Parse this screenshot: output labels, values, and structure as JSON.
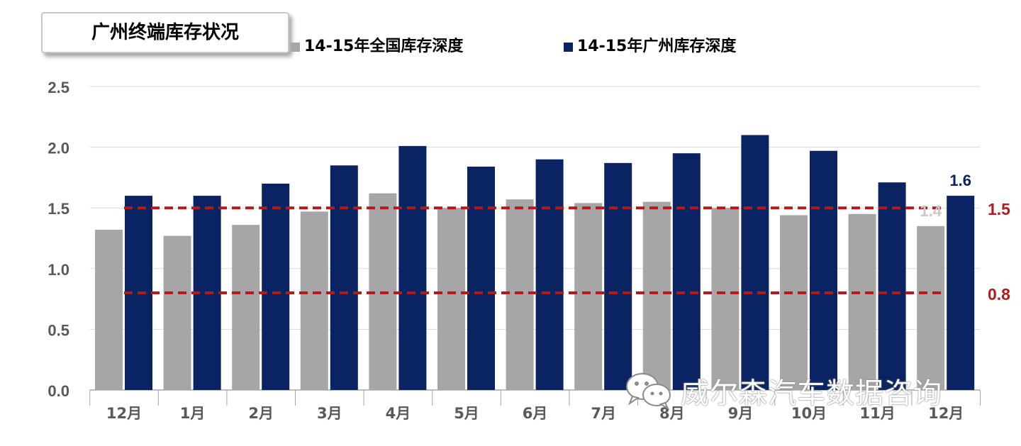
{
  "title": "广州终端库存状况",
  "legend": [
    {
      "label": "14-15年全国库存深度",
      "color": "#a6a6a6"
    },
    {
      "label": "14-15年广州库存深度",
      "color": "#0a2362"
    }
  ],
  "watermark": "威尔森汽车数据咨询",
  "chart_data": {
    "type": "bar",
    "categories": [
      "12月",
      "1月",
      "2月",
      "3月",
      "4月",
      "5月",
      "6月",
      "7月",
      "8月",
      "9月",
      "10月",
      "11月",
      "12月"
    ],
    "series": [
      {
        "name": "14-15年全国库存深度",
        "color": "#a6a6a6",
        "values": [
          1.32,
          1.27,
          1.36,
          1.47,
          1.62,
          1.5,
          1.57,
          1.54,
          1.55,
          1.5,
          1.44,
          1.45,
          1.35
        ]
      },
      {
        "name": "14-15年广州库存深度",
        "color": "#0a2362",
        "values": [
          1.6,
          1.6,
          1.7,
          1.85,
          2.01,
          1.84,
          1.9,
          1.87,
          1.95,
          2.1,
          1.97,
          1.71,
          1.6
        ]
      }
    ],
    "ylim": [
      0,
      2.5
    ],
    "yticks": [
      "0.0",
      "0.5",
      "1.0",
      "1.5",
      "2.0",
      "2.5"
    ],
    "grid": true,
    "legend_position": "top",
    "data_labels": [
      {
        "series": 0,
        "index": 12,
        "text": "1.4"
      },
      {
        "series": 1,
        "index": 12,
        "text": "1.6"
      }
    ],
    "reference_lines": [
      {
        "value": 1.5,
        "label": "1.5",
        "color": "#b01c1c"
      },
      {
        "value": 0.8,
        "label": "0.8",
        "color": "#b01c1c"
      }
    ]
  }
}
